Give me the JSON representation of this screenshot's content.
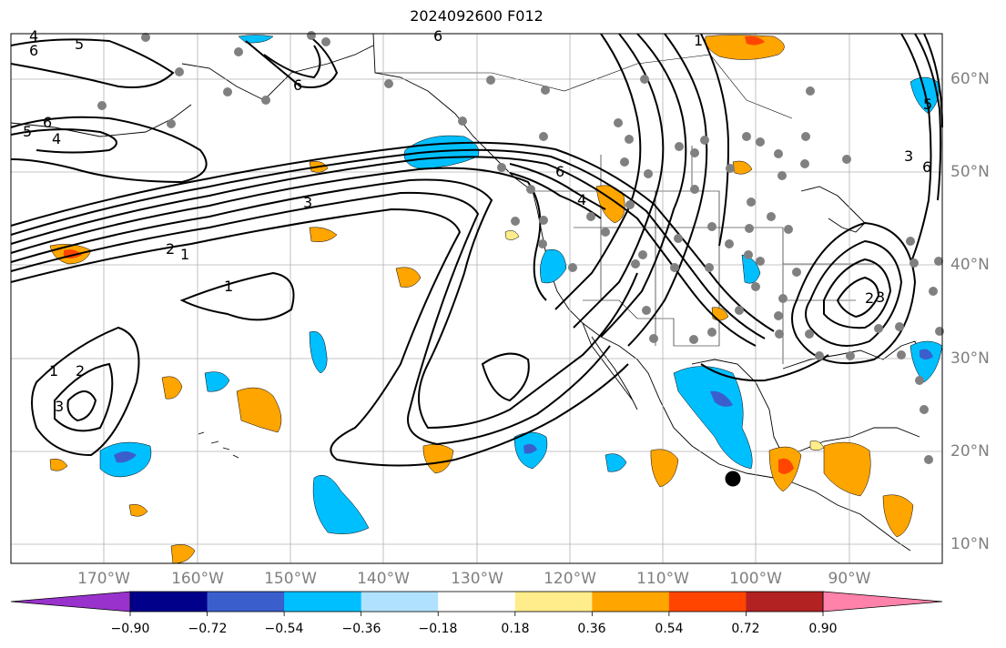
{
  "title": "2024092600 F012",
  "colors": {
    "ocean": "#ffffff",
    "grid": "#b0b0b0",
    "coast": "#000000",
    "contour": "#000000",
    "station": "#808080",
    "marker": "#000000"
  },
  "map": {
    "projection": "PlateCarree",
    "lon_range": [
      -180,
      -80
    ],
    "lat_range": [
      7,
      64
    ],
    "gridlines": true
  },
  "axes": {
    "lon_labels": [
      "170°W",
      "160°W",
      "150°W",
      "140°W",
      "130°W",
      "120°W",
      "110°W",
      "100°W",
      "90°W"
    ],
    "lat_labels": [
      "10°N",
      "20°N",
      "30°N",
      "40°N",
      "50°N",
      "60°N"
    ]
  },
  "colorbar": {
    "ticks": [
      "−0.90",
      "−0.72",
      "−0.54",
      "−0.36",
      "−0.18",
      "0.18",
      "0.36",
      "0.54",
      "0.72",
      "0.90"
    ],
    "colors": [
      "#9932cc",
      "#00008b",
      "#3a5fcd",
      "#00bfff",
      "#b0e2ff",
      "#ffffff",
      "#ffec8b",
      "#ffa500",
      "#ff4500",
      "#b22222",
      "#ff82ab"
    ],
    "extend": "both"
  },
  "contour_labels": [
    "6",
    "5",
    "4",
    "6",
    "5",
    "4",
    "6",
    "3",
    "2",
    "1",
    "1",
    "6",
    "4",
    "1",
    "2",
    "3",
    "1",
    "3",
    "6",
    "3",
    "2",
    "6",
    "5"
  ],
  "station_count": 78,
  "marker": {
    "lon": -102,
    "lat": 17
  }
}
